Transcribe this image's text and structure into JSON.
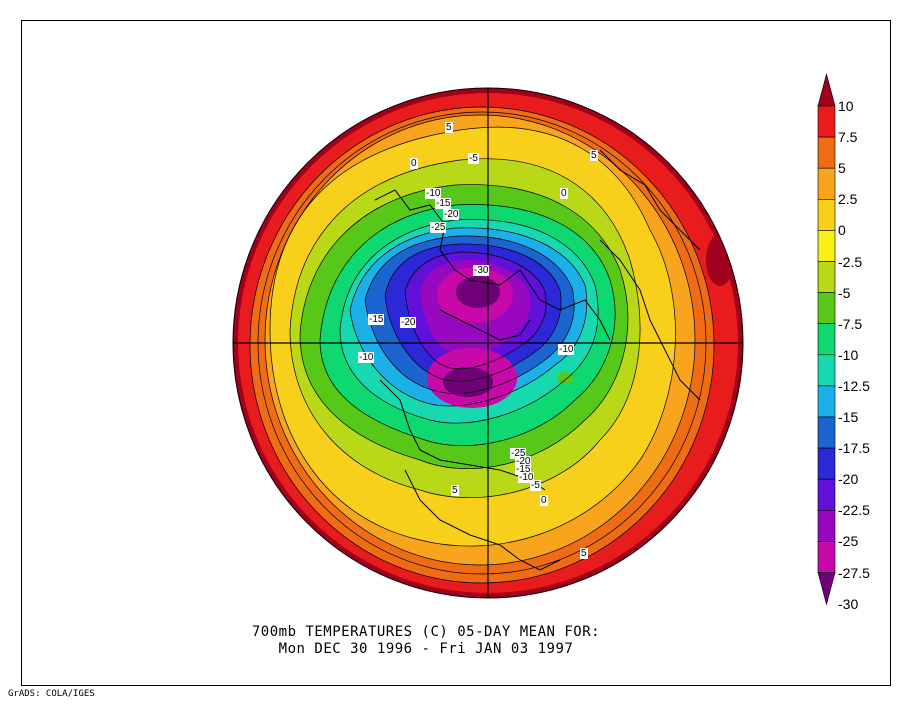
{
  "title_line1": "700mb TEMPERATURES (C)   05-DAY MEAN FOR:",
  "title_line2": "Mon DEC 30 1996 - Fri JAN 03 1997",
  "footer": "GrADS: COLA/IGES",
  "colorbar": {
    "labels": [
      "10",
      "7.5",
      "5",
      "2.5",
      "0",
      "-2.5",
      "-5",
      "-7.5",
      "-10",
      "-12.5",
      "-15",
      "-17.5",
      "-20",
      "-22.5",
      "-25",
      "-27.5",
      "-30"
    ],
    "colors": [
      "#a0001c",
      "#e81c1c",
      "#f06c14",
      "#f8a41c",
      "#f8d01c",
      "#f8f018",
      "#b8d818",
      "#58c818",
      "#10d870",
      "#18d8b0",
      "#1cb0e8",
      "#1c64d0",
      "#2c28d8",
      "#6010d8",
      "#9808c0",
      "#c808a8",
      "#700078"
    ]
  },
  "contour_labels": [
    {
      "text": "5"
    },
    {
      "text": "-5"
    },
    {
      "text": "0"
    },
    {
      "text": "5"
    },
    {
      "text": "0"
    },
    {
      "text": "-10"
    },
    {
      "text": "-15"
    },
    {
      "text": "-20"
    },
    {
      "text": "-25"
    },
    {
      "text": "-30"
    },
    {
      "text": "-15"
    },
    {
      "text": "-20"
    },
    {
      "text": "-10"
    },
    {
      "text": "-10"
    },
    {
      "text": "-25"
    },
    {
      "text": "-20"
    },
    {
      "text": "-15"
    },
    {
      "text": "-10"
    },
    {
      "text": "-5"
    },
    {
      "text": "0"
    },
    {
      "text": "5"
    },
    {
      "text": "5"
    }
  ]
}
